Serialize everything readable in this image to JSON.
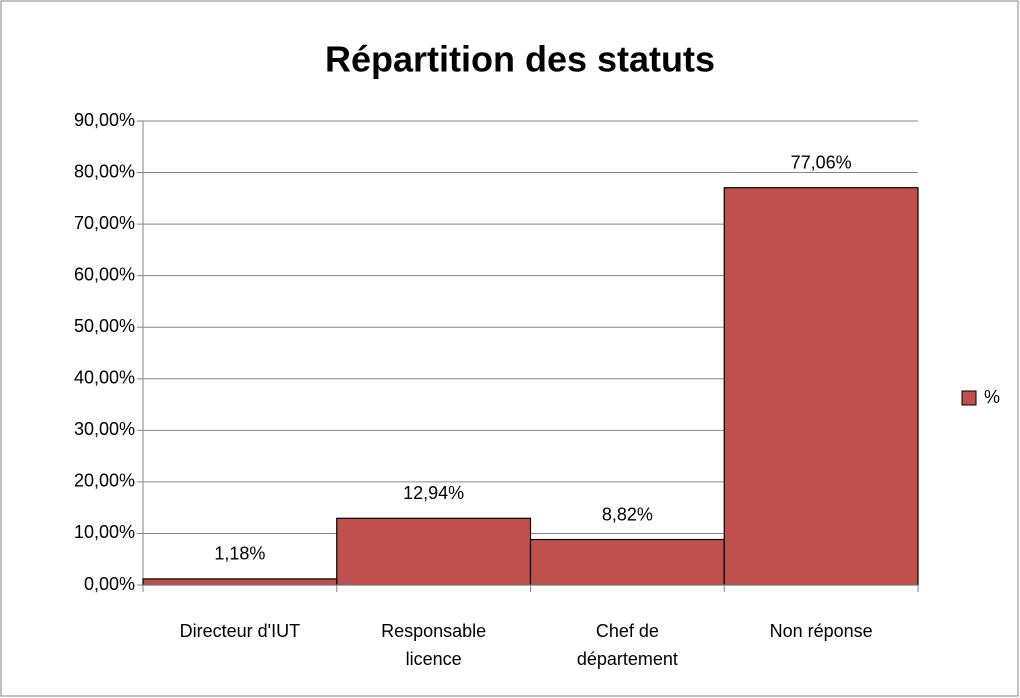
{
  "chart_data": {
    "type": "bar",
    "title": "Répartition des statuts",
    "categories": [
      "Directeur d'IUT",
      "Responsable licence",
      "Chef de département",
      "Non réponse"
    ],
    "series": [
      {
        "name": "%",
        "color": "#c0504d",
        "values": [
          1.18,
          12.94,
          8.82,
          77.06
        ],
        "value_labels": [
          "1,18%",
          "12,94%",
          "8,82%",
          "77,06%"
        ]
      }
    ],
    "ylim": [
      0,
      90
    ],
    "yticks": [
      {
        "value": 0,
        "label": "0,00%"
      },
      {
        "value": 10,
        "label": "10,00%"
      },
      {
        "value": 20,
        "label": "20,00%"
      },
      {
        "value": 30,
        "label": "30,00%"
      },
      {
        "value": 40,
        "label": "40,00%"
      },
      {
        "value": 50,
        "label": "50,00%"
      },
      {
        "value": 60,
        "label": "60,00%"
      },
      {
        "value": 70,
        "label": "70,00%"
      },
      {
        "value": 80,
        "label": "80,00%"
      },
      {
        "value": 90,
        "label": "90,00%"
      }
    ],
    "grid": true,
    "legend": "right"
  }
}
